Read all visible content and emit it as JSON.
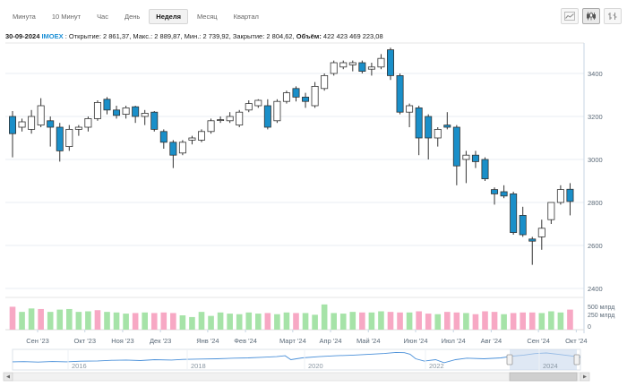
{
  "toolbar": {
    "timeframes": [
      {
        "label": "Минута",
        "active": false
      },
      {
        "label": "10 Минут",
        "active": false
      },
      {
        "label": "Час",
        "active": false
      },
      {
        "label": "День",
        "active": false
      },
      {
        "label": "Неделя",
        "active": true
      },
      {
        "label": "Месяц",
        "active": false
      },
      {
        "label": "Квартал",
        "active": false
      }
    ],
    "chart_types": [
      "line-chart-icon",
      "candlestick-chart-icon",
      "bar-chart-icon"
    ]
  },
  "info": {
    "date": "30-09-2024",
    "ticker": "IMOEX",
    "open_label": "Открытие:",
    "open": "2 861,37",
    "high_label": "Макс.:",
    "high": "2 889,87",
    "low_label": "Мин.:",
    "low": "2 739,92",
    "close_label": "Закрытие:",
    "close": "2 804,62",
    "volume_label": "Объём:",
    "volume": "422 423 469 223,08"
  },
  "colors": {
    "up_fill": "#ffffff",
    "down_fill": "#1a8fc9",
    "candle_stroke": "#333333",
    "vol_up": "#a6e3a8",
    "vol_down": "#f7a8c4",
    "grid": "#e8eef3",
    "axis_text": "#5b6a78",
    "navigator_line": "#4a90d9",
    "navigator_mask": "#c9d8ec"
  },
  "chart_data": {
    "type": "candlestick",
    "y_axis": {
      "min": 2400,
      "max": 3500,
      "ticks": [
        2400,
        2600,
        2800,
        3000,
        3200,
        3400
      ]
    },
    "volume_axis": {
      "ticks": [
        "500 млрд",
        "250 млрд",
        "0"
      ]
    },
    "x_tick_labels": [
      "Сен '23",
      "Окт '23",
      "Ноя '23",
      "Дек '23",
      "Янв '24",
      "Фев '24",
      "Март '24",
      "Апр '24",
      "Май '24",
      "Июн '24",
      "Июл '24",
      "Авг '24",
      "Сен '24",
      "Окт '24"
    ],
    "x_tick_weeks": [
      0,
      5,
      9,
      13,
      18,
      22,
      27,
      31,
      35,
      40,
      44,
      48,
      53,
      57
    ],
    "candles": [
      {
        "o": 3200,
        "h": 3225,
        "l": 3010,
        "c": 3120
      },
      {
        "o": 3150,
        "h": 3190,
        "l": 3130,
        "c": 3175
      },
      {
        "o": 3140,
        "h": 3230,
        "l": 3120,
        "c": 3200
      },
      {
        "o": 3160,
        "h": 3285,
        "l": 3150,
        "c": 3250
      },
      {
        "o": 3180,
        "h": 3200,
        "l": 3060,
        "c": 3150
      },
      {
        "o": 3150,
        "h": 3170,
        "l": 2990,
        "c": 3040
      },
      {
        "o": 3060,
        "h": 3160,
        "l": 3040,
        "c": 3140
      },
      {
        "o": 3140,
        "h": 3160,
        "l": 3110,
        "c": 3150
      },
      {
        "o": 3150,
        "h": 3200,
        "l": 3130,
        "c": 3190
      },
      {
        "o": 3190,
        "h": 3275,
        "l": 3180,
        "c": 3265
      },
      {
        "o": 3280,
        "h": 3290,
        "l": 3210,
        "c": 3230
      },
      {
        "o": 3230,
        "h": 3250,
        "l": 3190,
        "c": 3205
      },
      {
        "o": 3210,
        "h": 3250,
        "l": 3190,
        "c": 3240
      },
      {
        "o": 3245,
        "h": 3250,
        "l": 3170,
        "c": 3200
      },
      {
        "o": 3200,
        "h": 3230,
        "l": 3160,
        "c": 3215
      },
      {
        "o": 3220,
        "h": 3225,
        "l": 3130,
        "c": 3140
      },
      {
        "o": 3130,
        "h": 3140,
        "l": 3050,
        "c": 3080
      },
      {
        "o": 3080,
        "h": 3090,
        "l": 2960,
        "c": 3020
      },
      {
        "o": 3030,
        "h": 3090,
        "l": 3020,
        "c": 3080
      },
      {
        "o": 3090,
        "h": 3110,
        "l": 3070,
        "c": 3100
      },
      {
        "o": 3090,
        "h": 3140,
        "l": 3080,
        "c": 3130
      },
      {
        "o": 3130,
        "h": 3190,
        "l": 3120,
        "c": 3180
      },
      {
        "o": 3185,
        "h": 3200,
        "l": 3170,
        "c": 3185
      },
      {
        "o": 3180,
        "h": 3220,
        "l": 3170,
        "c": 3200
      },
      {
        "o": 3160,
        "h": 3230,
        "l": 3150,
        "c": 3220
      },
      {
        "o": 3230,
        "h": 3275,
        "l": 3220,
        "c": 3260
      },
      {
        "o": 3250,
        "h": 3280,
        "l": 3240,
        "c": 3275
      },
      {
        "o": 3250,
        "h": 3280,
        "l": 3140,
        "c": 3150
      },
      {
        "o": 3180,
        "h": 3280,
        "l": 3170,
        "c": 3270
      },
      {
        "o": 3270,
        "h": 3320,
        "l": 3260,
        "c": 3310
      },
      {
        "o": 3330,
        "h": 3340,
        "l": 3270,
        "c": 3290
      },
      {
        "o": 3290,
        "h": 3310,
        "l": 3240,
        "c": 3270
      },
      {
        "o": 3250,
        "h": 3360,
        "l": 3240,
        "c": 3340
      },
      {
        "o": 3330,
        "h": 3400,
        "l": 3320,
        "c": 3390
      },
      {
        "o": 3400,
        "h": 3460,
        "l": 3390,
        "c": 3450
      },
      {
        "o": 3430,
        "h": 3460,
        "l": 3420,
        "c": 3450
      },
      {
        "o": 3440,
        "h": 3460,
        "l": 3410,
        "c": 3450
      },
      {
        "o": 3450,
        "h": 3460,
        "l": 3400,
        "c": 3410
      },
      {
        "o": 3420,
        "h": 3450,
        "l": 3390,
        "c": 3430
      },
      {
        "o": 3430,
        "h": 3490,
        "l": 3420,
        "c": 3470
      },
      {
        "o": 3510,
        "h": 3520,
        "l": 3370,
        "c": 3390
      },
      {
        "o": 3390,
        "h": 3400,
        "l": 3210,
        "c": 3220
      },
      {
        "o": 3220,
        "h": 3260,
        "l": 3150,
        "c": 3250
      },
      {
        "o": 3240,
        "h": 3250,
        "l": 3020,
        "c": 3100
      },
      {
        "o": 3200,
        "h": 3210,
        "l": 3000,
        "c": 3100
      },
      {
        "o": 3100,
        "h": 3150,
        "l": 3060,
        "c": 3140
      },
      {
        "o": 3160,
        "h": 3220,
        "l": 3140,
        "c": 3150
      },
      {
        "o": 3150,
        "h": 3160,
        "l": 2880,
        "c": 2970
      },
      {
        "o": 3000,
        "h": 3040,
        "l": 2890,
        "c": 3020
      },
      {
        "o": 3020,
        "h": 3040,
        "l": 2960,
        "c": 2990
      },
      {
        "o": 3000,
        "h": 3010,
        "l": 2900,
        "c": 2910
      },
      {
        "o": 2860,
        "h": 2870,
        "l": 2790,
        "c": 2840
      },
      {
        "o": 2850,
        "h": 2880,
        "l": 2820,
        "c": 2830
      },
      {
        "o": 2840,
        "h": 2850,
        "l": 2650,
        "c": 2660
      },
      {
        "o": 2740,
        "h": 2780,
        "l": 2640,
        "c": 2650
      },
      {
        "o": 2630,
        "h": 2640,
        "l": 2510,
        "c": 2620
      },
      {
        "o": 2640,
        "h": 2720,
        "l": 2580,
        "c": 2680
      },
      {
        "o": 2720,
        "h": 2800,
        "l": 2700,
        "c": 2800
      },
      {
        "o": 2800,
        "h": 2880,
        "l": 2790,
        "c": 2860
      },
      {
        "o": 2861.37,
        "h": 2889.87,
        "l": 2739.92,
        "c": 2804.62
      }
    ],
    "volume_levels": [
      0.8,
      0.62,
      0.74,
      0.72,
      0.62,
      0.7,
      0.72,
      0.62,
      0.64,
      0.68,
      0.62,
      0.6,
      0.56,
      0.58,
      0.6,
      0.58,
      0.6,
      0.58,
      0.5,
      0.44,
      0.62,
      0.48,
      0.6,
      0.56,
      0.54,
      0.6,
      0.56,
      0.58,
      0.54,
      0.6,
      0.58,
      0.58,
      0.52,
      0.88,
      0.58,
      0.56,
      0.62,
      0.6,
      0.6,
      0.64,
      0.62,
      0.6,
      0.6,
      0.64,
      0.56,
      0.54,
      0.62,
      0.6,
      0.58,
      0.54,
      0.64,
      0.62,
      0.54,
      0.58,
      0.6,
      0.6,
      0.58,
      0.64,
      0.6,
      0.7
    ],
    "volume_flags": [
      0,
      1,
      1,
      0,
      1,
      1,
      1,
      1,
      1,
      0,
      1,
      1,
      1,
      0,
      1,
      0,
      0,
      0,
      1,
      1,
      1,
      1,
      1,
      1,
      1,
      1,
      1,
      0,
      1,
      1,
      0,
      1,
      1,
      1,
      1,
      1,
      1,
      0,
      1,
      1,
      0,
      0,
      1,
      0,
      0,
      1,
      0,
      0,
      1,
      0,
      0,
      0,
      1,
      0,
      0,
      0,
      1,
      1,
      1,
      0
    ],
    "navigator": {
      "labels": [
        "2016",
        "2018",
        "2020",
        "2022",
        "2024"
      ],
      "line": [
        [
          0.0,
          0.7
        ],
        [
          0.02,
          0.69
        ],
        [
          0.045,
          0.72
        ],
        [
          0.07,
          0.68
        ],
        [
          0.095,
          0.7
        ],
        [
          0.12,
          0.66
        ],
        [
          0.15,
          0.64
        ],
        [
          0.175,
          0.6
        ],
        [
          0.2,
          0.58
        ],
        [
          0.225,
          0.62
        ],
        [
          0.25,
          0.56
        ],
        [
          0.28,
          0.58
        ],
        [
          0.3,
          0.54
        ],
        [
          0.33,
          0.52
        ],
        [
          0.36,
          0.5
        ],
        [
          0.39,
          0.46
        ],
        [
          0.415,
          0.44
        ],
        [
          0.44,
          0.4
        ],
        [
          0.465,
          0.36
        ],
        [
          0.48,
          0.3
        ],
        [
          0.49,
          0.56
        ],
        [
          0.51,
          0.44
        ],
        [
          0.54,
          0.36
        ],
        [
          0.57,
          0.3
        ],
        [
          0.6,
          0.26
        ],
        [
          0.63,
          0.2
        ],
        [
          0.655,
          0.15
        ],
        [
          0.675,
          0.08
        ],
        [
          0.69,
          0.1
        ],
        [
          0.7,
          0.2
        ],
        [
          0.71,
          0.5
        ],
        [
          0.725,
          0.65
        ],
        [
          0.745,
          0.56
        ],
        [
          0.76,
          0.76
        ],
        [
          0.78,
          0.56
        ],
        [
          0.8,
          0.46
        ],
        [
          0.83,
          0.5
        ],
        [
          0.86,
          0.44
        ],
        [
          0.88,
          0.33
        ],
        [
          0.9,
          0.26
        ],
        [
          0.92,
          0.16
        ],
        [
          0.94,
          0.12
        ],
        [
          0.96,
          0.2
        ],
        [
          0.985,
          0.32
        ],
        [
          1.0,
          0.4
        ]
      ]
    }
  }
}
